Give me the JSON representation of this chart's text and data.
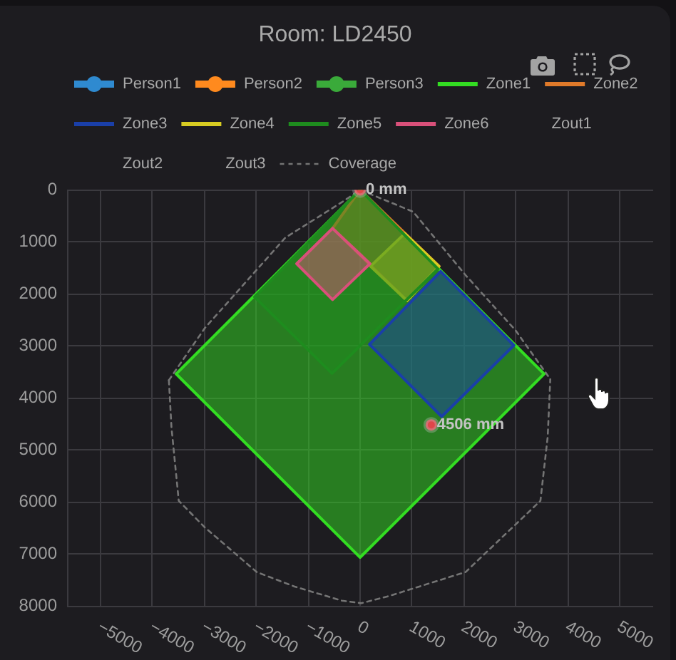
{
  "chart_data": {
    "type": "line",
    "title": "Room: LD2450",
    "xlim": [
      -5640,
      5640
    ],
    "xticks": [
      {
        "value": -5000,
        "label": "−5000"
      },
      {
        "value": -4000,
        "label": "−4000"
      },
      {
        "value": -3000,
        "label": "−3000"
      },
      {
        "value": -2000,
        "label": "−2000"
      },
      {
        "value": -1000,
        "label": "−1000"
      },
      0,
      1000,
      2000,
      3000,
      4000,
      5000
    ],
    "ylim": [
      8000,
      0
    ],
    "yticks": [
      0,
      1000,
      2000,
      3000,
      4000,
      5000,
      6000,
      7000,
      8000
    ],
    "grid": true,
    "legend": "top",
    "series": [
      {
        "name": "Person1",
        "type": "scatter",
        "marker": "circle",
        "color": "#2f8ad0"
      },
      {
        "name": "Person2",
        "type": "scatter",
        "marker": "circle",
        "color": "#ff8a1e"
      },
      {
        "name": "Person3",
        "type": "scatter",
        "marker": "circle",
        "color": "#3aaa3a"
      },
      {
        "name": "Zone1",
        "type": "area",
        "color": "#33dd22",
        "x": [
          0,
          -3540,
          0,
          3540,
          0
        ],
        "values": [
          0,
          3540,
          7070,
          3540,
          0
        ]
      },
      {
        "name": "Zone2",
        "type": "area",
        "color": "#e07a2a",
        "x": [
          0,
          1520,
          900,
          -530,
          0
        ],
        "values": [
          0,
          1470,
          2130,
          740,
          0
        ]
      },
      {
        "name": "Zone3",
        "type": "area",
        "color": "#1a3fa8",
        "x": [
          1550,
          2960,
          1570,
          180,
          1550
        ],
        "values": [
          1570,
          2990,
          4360,
          2970,
          1570
        ]
      },
      {
        "name": "Zone4",
        "type": "area",
        "color": "#d8cc22",
        "x": [
          860,
          1520,
          900,
          200,
          860
        ],
        "values": [
          840,
          1470,
          2130,
          1470,
          840
        ]
      },
      {
        "name": "Zone5",
        "type": "area",
        "color": "#1e8c1e",
        "x": [
          0,
          1500,
          -540,
          -2030,
          0
        ],
        "values": [
          0,
          1520,
          3530,
          2060,
          0
        ]
      },
      {
        "name": "Zone6",
        "type": "area",
        "color": "#d9507a",
        "x": [
          -530,
          190,
          -530,
          -1220,
          -530
        ],
        "values": [
          740,
          1420,
          2110,
          1420,
          740
        ]
      },
      {
        "name": "Zout1"
      },
      {
        "name": "Zout2"
      },
      {
        "name": "Zout3"
      },
      {
        "name": "Coverage",
        "line_style": "dashed",
        "color": "#747474",
        "x": [
          -3680,
          -2990,
          -1440,
          -340,
          0,
          1020,
          2030,
          2990,
          3660
        ],
        "values": [
          3660,
          2660,
          920,
          230,
          0,
          420,
          1640,
          2700,
          3640
        ]
      },
      {
        "line_style": "dashed",
        "color": "#747474",
        "x": [
          -3680,
          -3630,
          -3490,
          -2990,
          -1990,
          -1260,
          -350,
          20,
          560,
          2030,
          3470,
          3610,
          3660
        ],
        "values": [
          3660,
          4570,
          5980,
          6490,
          7350,
          7630,
          7900,
          7950,
          7810,
          7350,
          5980,
          4750,
          3640
        ]
      },
      {
        "type": "scatter",
        "marker": "circle",
        "color": "#e0464a",
        "x": [
          0,
          1370
        ],
        "values": [
          0,
          4520
        ]
      }
    ],
    "annotations": [
      {
        "text": "0 mm",
        "x": 0,
        "y": 0
      },
      {
        "text": "4506 mm",
        "x": 1370,
        "y": 4520
      }
    ]
  }
}
